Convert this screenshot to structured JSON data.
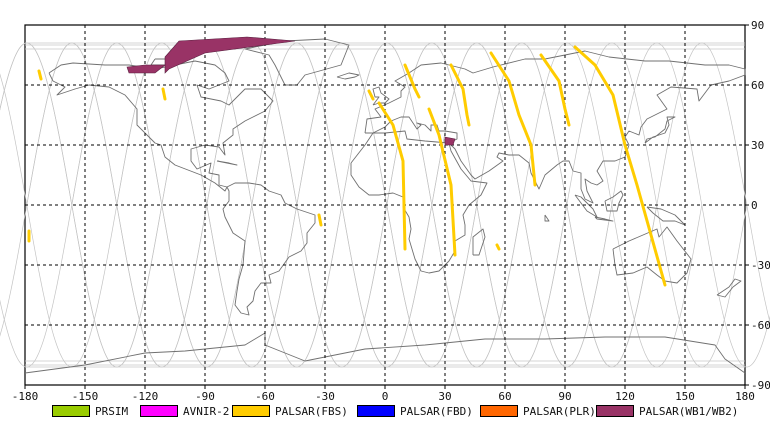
{
  "chart_data": {
    "type": "map",
    "projection": "equirectangular",
    "xlim": [
      -180,
      180
    ],
    "ylim": [
      -90,
      90
    ],
    "grid": true,
    "x_ticks": [
      "-180",
      "-150",
      "-120",
      "-90",
      "-60",
      "-30",
      "0",
      "30",
      "60",
      "90",
      "120",
      "150",
      "180"
    ],
    "y_ticks": [
      "90",
      "60",
      "30",
      "0",
      "-30",
      "-60",
      "-90"
    ],
    "legend": [
      {
        "name": "PRSIM",
        "color": "#99cc00"
      },
      {
        "name": "AVNIR-2",
        "color": "#ff00ff"
      },
      {
        "name": "PALSAR(FBS)",
        "color": "#ffcc00"
      },
      {
        "name": "PALSAR(FBD)",
        "color": "#0000ff"
      },
      {
        "name": "PALSAR(PLR)",
        "color": "#ff6600"
      },
      {
        "name": "PALSAR(WB1/WB2)",
        "color": "#993366"
      }
    ],
    "fbs_swaths": [
      {
        "path": [
          [
            -173,
            67
          ],
          [
            -172,
            63
          ]
        ]
      },
      {
        "path": [
          [
            -111,
            58
          ],
          [
            -110,
            53
          ]
        ]
      },
      {
        "path": [
          [
            -8,
            57
          ],
          [
            -6,
            53
          ]
        ]
      },
      {
        "path": [
          [
            -3,
            51
          ],
          [
            4,
            40
          ],
          [
            9,
            22
          ],
          [
            10,
            -22
          ]
        ]
      },
      {
        "path": [
          [
            10,
            70
          ],
          [
            15,
            58
          ],
          [
            17,
            54
          ]
        ]
      },
      {
        "path": [
          [
            22,
            48
          ],
          [
            27,
            35
          ],
          [
            33,
            10
          ],
          [
            35,
            -25
          ]
        ]
      },
      {
        "path": [
          [
            33,
            70
          ],
          [
            39,
            58
          ],
          [
            41,
            45
          ],
          [
            42,
            40
          ]
        ]
      },
      {
        "path": [
          [
            53,
            76
          ],
          [
            62,
            62
          ],
          [
            67,
            45
          ],
          [
            73,
            30
          ],
          [
            75,
            10
          ]
        ]
      },
      {
        "path": [
          [
            78,
            75
          ],
          [
            87,
            62
          ],
          [
            90,
            48
          ],
          [
            92,
            40
          ]
        ]
      },
      {
        "path": [
          [
            95,
            79
          ],
          [
            105,
            70
          ],
          [
            114,
            55
          ],
          [
            120,
            30
          ],
          [
            126,
            10
          ],
          [
            133,
            -15
          ],
          [
            140,
            -40
          ]
        ]
      },
      {
        "path": [
          [
            -33,
            -5
          ],
          [
            -32,
            -10
          ]
        ]
      },
      {
        "path": [
          [
            56,
            -20
          ],
          [
            57,
            -22
          ]
        ]
      },
      {
        "path": [
          [
            -178,
            -13
          ],
          [
            -178,
            -18
          ]
        ]
      }
    ],
    "wb_swaths": [
      {
        "polygon": [
          [
            -110,
            74
          ],
          [
            -103,
            82
          ],
          [
            -69,
            84
          ],
          [
            -45,
            82
          ],
          [
            -60,
            80
          ],
          [
            -90,
            76
          ],
          [
            -108,
            68
          ],
          [
            -110,
            66
          ]
        ]
      },
      {
        "polygon": [
          [
            -129,
            69
          ],
          [
            -120,
            70
          ],
          [
            -110,
            70
          ],
          [
            -115,
            66
          ],
          [
            -128,
            66
          ]
        ]
      },
      {
        "polygon": [
          [
            30,
            34
          ],
          [
            35,
            33
          ],
          [
            34,
            30
          ],
          [
            30,
            30
          ]
        ]
      }
    ]
  }
}
